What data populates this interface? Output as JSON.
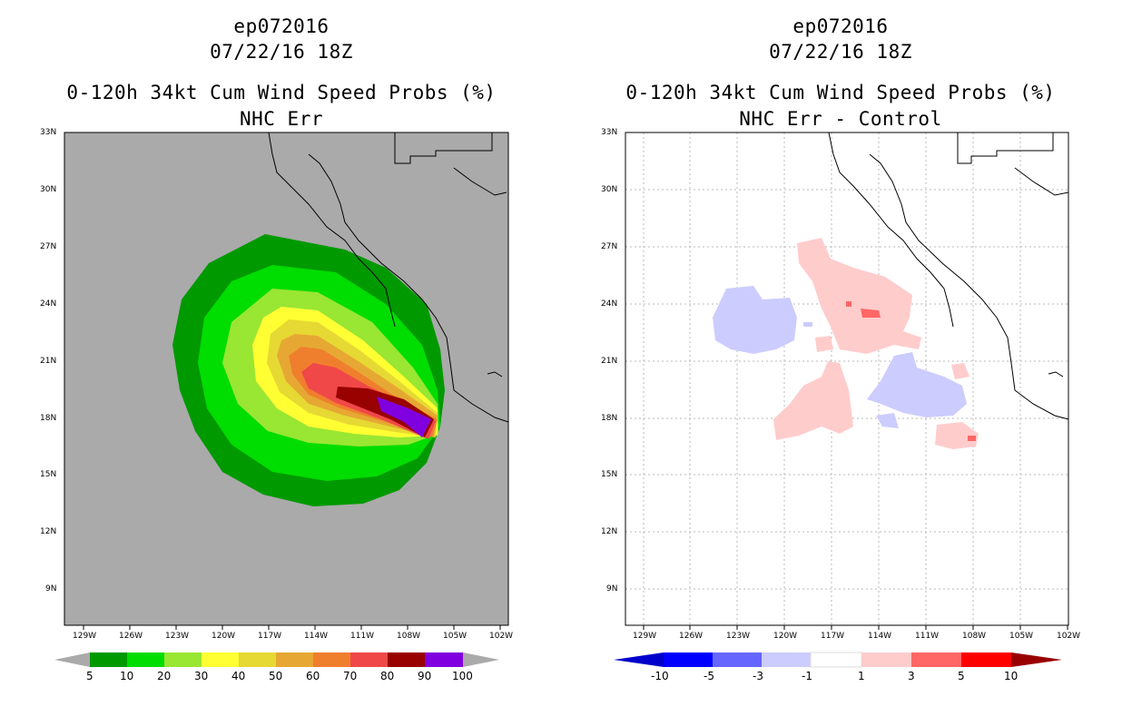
{
  "panels": [
    {
      "storm_id": "ep072016",
      "datetime": "07/22/16 18Z",
      "product": "0-120h 34kt Cum Wind Speed Probs (%)",
      "subtitle": "NHC Err",
      "colorbar": {
        "labels": [
          "5",
          "10",
          "20",
          "30",
          "40",
          "50",
          "60",
          "70",
          "80",
          "90",
          "100"
        ],
        "colors": [
          "#009900",
          "#00dd00",
          "#99e633",
          "#ffff33",
          "#e6d933",
          "#e6a833",
          "#f07f2d",
          "#f04848",
          "#990000",
          "#8000e0"
        ]
      }
    },
    {
      "storm_id": "ep072016",
      "datetime": "07/22/16 18Z",
      "product": "0-120h 34kt Cum Wind Speed Probs (%)",
      "subtitle": "NHC Err - Control",
      "colorbar": {
        "labels": [
          "-10",
          "-5",
          "-3",
          "-1",
          "1",
          "3",
          "5",
          "10"
        ],
        "colors": [
          "#0000cc",
          "#0000ff",
          "#6666ff",
          "#ccccff",
          "#ffffff",
          "#ffcccc",
          "#ff6666",
          "#ff0000",
          "#990000"
        ]
      }
    }
  ],
  "axes": {
    "lon_labels": [
      "129W",
      "126W",
      "123W",
      "120W",
      "117W",
      "114W",
      "111W",
      "108W",
      "105W",
      "102W"
    ],
    "lat_labels": [
      "33N",
      "30N",
      "27N",
      "24N",
      "21N",
      "18N",
      "15N",
      "12N",
      "9N"
    ]
  },
  "map_colors": {
    "ocean_fill": "#aaaaaa",
    "coast": "#000000"
  }
}
